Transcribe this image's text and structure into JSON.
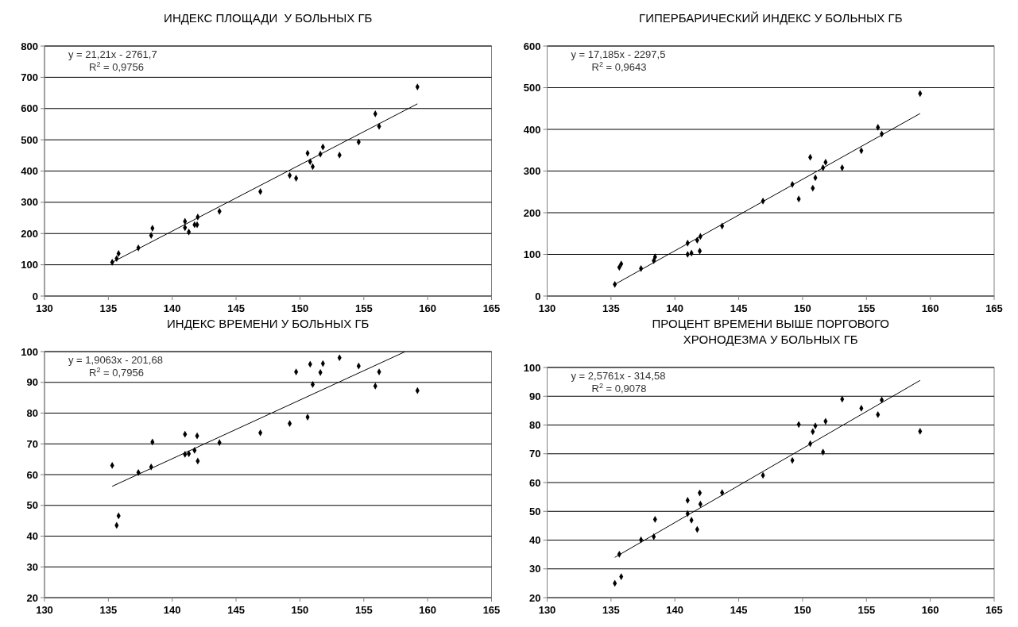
{
  "chart_data": [
    {
      "type": "scatter",
      "title": "ИНДЕКС ПЛОЩАДИ  У БОЛЬНЫХ ГБ",
      "xlim": [
        130,
        165
      ],
      "xticks": [
        130,
        135,
        140,
        145,
        150,
        155,
        160,
        165
      ],
      "ylim": [
        0,
        800
      ],
      "yticks": [
        0,
        100,
        200,
        300,
        400,
        500,
        600,
        700,
        800
      ],
      "grid": "y",
      "marker": "diamond",
      "annotations": [
        "y = 21,21x - 2761,7",
        "R$^{2}$ = 0,9756"
      ],
      "series": [
        {
          "color": "#000000",
          "x": [
            135.3,
            135.65,
            135.8,
            137.35,
            138.35,
            138.45,
            141.0,
            141.0,
            141.3,
            141.75,
            141.95,
            142.0,
            143.7,
            146.9,
            149.2,
            149.7,
            150.6,
            150.8,
            151.0,
            151.6,
            151.8,
            153.1,
            154.6,
            155.9,
            156.2,
            159.2
          ],
          "values": [
            108,
            120,
            136,
            154,
            194,
            217,
            239,
            219,
            205,
            228,
            228,
            253,
            271,
            334,
            386,
            377,
            457,
            430,
            414,
            454,
            477,
            451,
            493,
            583,
            543,
            669
          ]
        },
        {
          "type": "line",
          "color": "#000000",
          "marker": "none",
          "line_style": "solid",
          "x": [
            135.3,
            159.2
          ],
          "values": [
            108,
            615
          ]
        }
      ]
    },
    {
      "type": "scatter",
      "title": "ГИПЕРБАРИЧЕСКИЙ ИНДЕКС У БОЛЬНЫХ ГБ",
      "xlim": [
        130,
        165
      ],
      "xticks": [
        130,
        135,
        140,
        145,
        150,
        155,
        160,
        165
      ],
      "ylim": [
        0,
        600
      ],
      "yticks": [
        0,
        100,
        200,
        300,
        400,
        500,
        600
      ],
      "grid": "y",
      "marker": "diamond",
      "annotations": [
        "y = 17,185x - 2297,5",
        "R$^{2}$ = 0,9643"
      ],
      "series": [
        {
          "color": "#000000",
          "x": [
            135.3,
            135.65,
            135.8,
            137.35,
            138.35,
            138.45,
            141.0,
            141.0,
            141.3,
            141.75,
            141.95,
            142.0,
            143.7,
            146.9,
            149.2,
            149.7,
            150.6,
            150.8,
            151.0,
            151.6,
            151.8,
            153.1,
            154.6,
            155.9,
            156.2,
            159.2
          ],
          "values": [
            28,
            69,
            77,
            66,
            85,
            94,
            127,
            100,
            103,
            134,
            108,
            143,
            168,
            228,
            268,
            233,
            333,
            259,
            284,
            308,
            321,
            308,
            349,
            405,
            389,
            486
          ]
        },
        {
          "type": "line",
          "color": "#000000",
          "marker": "none",
          "line_style": "solid",
          "x": [
            135.3,
            159.2
          ],
          "values": [
            28,
            438
          ]
        }
      ]
    },
    {
      "type": "scatter",
      "title": "ИНДЕКС ВРЕМЕНИ У БОЛЬНЫХ ГБ",
      "xlim": [
        130,
        165
      ],
      "xticks": [
        130,
        135,
        140,
        145,
        150,
        155,
        160,
        165
      ],
      "ylim": [
        20,
        100
      ],
      "yticks": [
        20,
        30,
        40,
        50,
        60,
        70,
        80,
        90,
        100
      ],
      "grid": "y",
      "marker": "diamond",
      "annotations": [
        "y = 1,9063x - 201,68",
        "R$^{2}$ = 0,7956"
      ],
      "series": [
        {
          "color": "#000000",
          "x": [
            135.3,
            135.65,
            135.8,
            137.35,
            138.35,
            138.45,
            141.0,
            141.0,
            141.3,
            141.75,
            141.95,
            142.0,
            143.7,
            146.9,
            149.2,
            149.7,
            150.6,
            150.8,
            151.0,
            151.6,
            151.8,
            153.1,
            154.6,
            155.9,
            156.2,
            159.2
          ],
          "values": [
            63,
            43.5,
            46.6,
            60.7,
            62.5,
            70.6,
            73.1,
            66.6,
            66.8,
            67.9,
            72.6,
            64.4,
            70.4,
            73.6,
            76.6,
            93.4,
            78.7,
            95.9,
            89.3,
            93.2,
            96.1,
            98,
            95.3,
            88.8,
            93.4,
            87.3
          ]
        },
        {
          "type": "line",
          "color": "#000000",
          "marker": "none",
          "line_style": "solid",
          "x": [
            135.3,
            158.2
          ],
          "values": [
            56.2,
            99.9
          ]
        }
      ]
    },
    {
      "type": "scatter",
      "title": "ПРОЦЕНТ ВРЕМЕНИ ВЫШЕ ПОРГОВОГО\nХРОНОДЕЗМА У БОЛЬНЫХ ГБ",
      "xlim": [
        130,
        165
      ],
      "xticks": [
        130,
        135,
        140,
        145,
        150,
        155,
        160,
        165
      ],
      "ylim": [
        20,
        100
      ],
      "yticks": [
        20,
        30,
        40,
        50,
        60,
        70,
        80,
        90,
        100
      ],
      "grid": "y",
      "marker": "diamond",
      "annotations": [
        "y = 2,5761x - 314,58",
        "R$^{2}$ = 0,9078"
      ],
      "series": [
        {
          "color": "#000000",
          "x": [
            135.3,
            135.65,
            135.8,
            137.35,
            138.35,
            138.45,
            141.0,
            141.0,
            141.3,
            141.75,
            141.95,
            142.0,
            143.7,
            146.9,
            149.2,
            149.7,
            150.6,
            150.8,
            151.0,
            151.6,
            151.8,
            153.1,
            154.6,
            155.9,
            156.2,
            159.2
          ],
          "values": [
            25,
            35.1,
            27.3,
            40.1,
            41.2,
            47.2,
            53.8,
            49.2,
            46.9,
            43.7,
            56.4,
            52.5,
            56.5,
            62.5,
            67.7,
            80.2,
            73.5,
            77.7,
            79.7,
            70.6,
            81.3,
            89,
            85.8,
            83.6,
            88.7,
            77.8
          ]
        },
        {
          "type": "line",
          "color": "#000000",
          "marker": "none",
          "line_style": "solid",
          "x": [
            135.3,
            159.2
          ],
          "values": [
            34,
            95.5
          ]
        }
      ]
    }
  ]
}
